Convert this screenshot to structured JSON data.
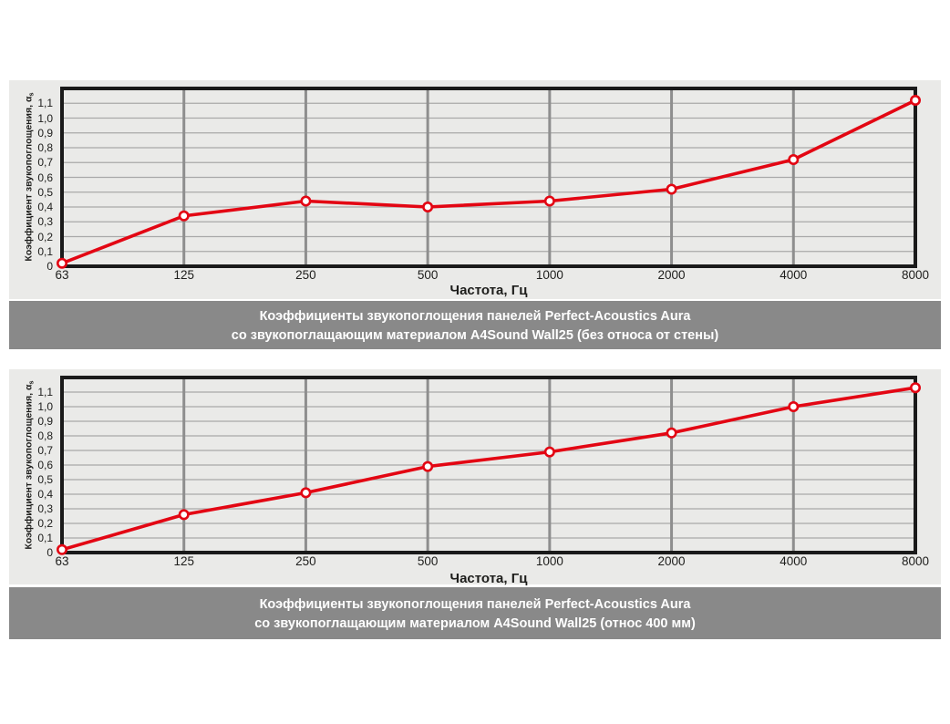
{
  "colors": {
    "panel_bg": "#eaeae8",
    "caption_bg": "#898989",
    "caption_text": "#ffffff",
    "grid_horizontal": "#a9a9a9",
    "grid_vertical": "#8e8e8e",
    "frame": "#1a1a1a",
    "series": "#e30613",
    "marker_fill": "#ffffff",
    "text": "#1d1d1b"
  },
  "chart_data": [
    {
      "type": "line",
      "xlabel": "Частота, Гц",
      "ylabel": "Коэффициент звукопоглощения, α",
      "ylabel_subscript": "s",
      "categories": [
        "63",
        "125",
        "250",
        "500",
        "1000",
        "2000",
        "4000",
        "8000"
      ],
      "values": [
        0.02,
        0.34,
        0.44,
        0.4,
        0.44,
        0.52,
        0.72,
        1.12
      ],
      "ylim": [
        0,
        1.2
      ],
      "ytick_step": 0.1,
      "ytick_labels": [
        "0",
        "0,1",
        "0,2",
        "0,3",
        "0,4",
        "0,5",
        "0,6",
        "0,7",
        "0,8",
        "0,9",
        "1,0",
        "1,1"
      ],
      "grid": "on",
      "legend": "none",
      "caption_lines": [
        "Коэффициенты звукопоглощения панелей Perfect-Acoustics Aura",
        "со звукопоглащающим материалом A4Sound Wall25 (без относа от стены)"
      ]
    },
    {
      "type": "line",
      "xlabel": "Частота, Гц",
      "ylabel": "Коэффициент звукопоглощения, α",
      "ylabel_subscript": "s",
      "categories": [
        "63",
        "125",
        "250",
        "500",
        "1000",
        "2000",
        "4000",
        "8000"
      ],
      "values": [
        0.02,
        0.26,
        0.41,
        0.59,
        0.69,
        0.82,
        1.0,
        1.13
      ],
      "ylim": [
        0,
        1.2
      ],
      "ytick_step": 0.1,
      "ytick_labels": [
        "0",
        "0,1",
        "0,2",
        "0,3",
        "0,4",
        "0,5",
        "0,6",
        "0,7",
        "0,8",
        "0,9",
        "1,0",
        "1,1"
      ],
      "grid": "on",
      "legend": "none",
      "caption_lines": [
        "Коэффициенты звукопоглощения панелей Perfect-Acoustics Aura",
        "со звукопоглащающим материалом A4Sound Wall25 (относ 400 мм)"
      ]
    }
  ]
}
